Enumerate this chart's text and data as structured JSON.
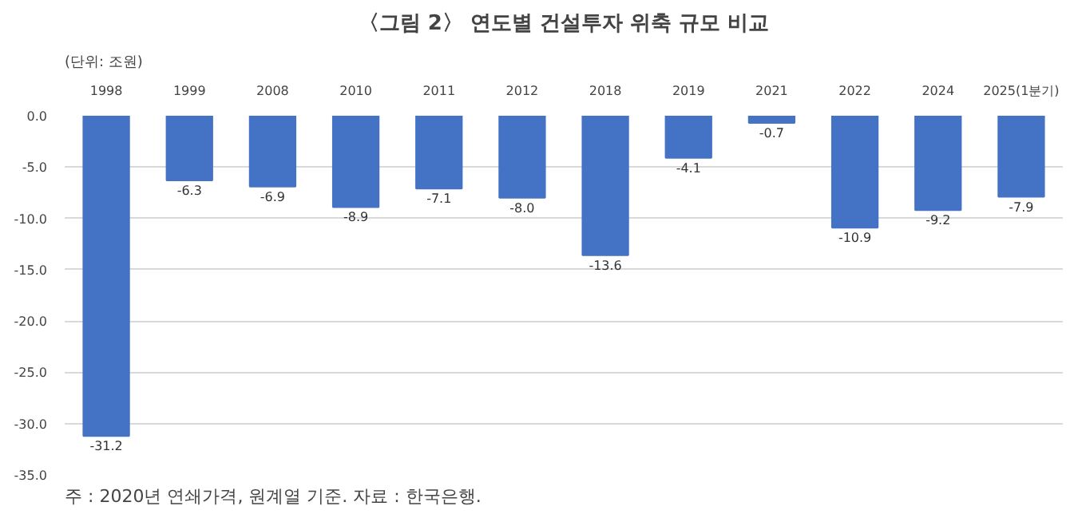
{
  "chart_data": {
    "type": "bar",
    "title": "〈그림 2〉 연도별 건설투자 위축 규모 비교",
    "ylabel": "(단위: 조원)",
    "annotations": [
      "주 : 2020년 연쇄가격, 원계열 기준. 자료 : 한국은행."
    ],
    "categories": [
      "1998",
      "1999",
      "2008",
      "2010",
      "2011",
      "2012",
      "2018",
      "2019",
      "2021",
      "2022",
      "2024",
      "2025(1분기)"
    ],
    "values": [
      -31.2,
      -6.3,
      -6.9,
      -8.9,
      -7.1,
      -8.0,
      -13.6,
      -4.1,
      -0.7,
      -10.9,
      -9.2,
      -7.9
    ],
    "value_labels": [
      "-31.2",
      "-6.3",
      "-6.9",
      "-8.9",
      "-7.1",
      "-8.0",
      "-13.6",
      "-4.1",
      "-0.7",
      "-10.9",
      "-9.2",
      "-7.9"
    ],
    "color": "#4472c4",
    "grid": "y",
    "ylim": [
      -35,
      0
    ],
    "yticks": [
      {
        "value": 0,
        "label": "0.0"
      },
      {
        "value": -5,
        "label": "-5.0"
      },
      {
        "value": -10,
        "label": "-10.0"
      },
      {
        "value": -15,
        "label": "-15.0"
      },
      {
        "value": -20,
        "label": "-20.0"
      },
      {
        "value": -25,
        "label": "-25.0"
      },
      {
        "value": -30,
        "label": "-30.0"
      },
      {
        "value": -35,
        "label": "-35.0"
      }
    ]
  }
}
